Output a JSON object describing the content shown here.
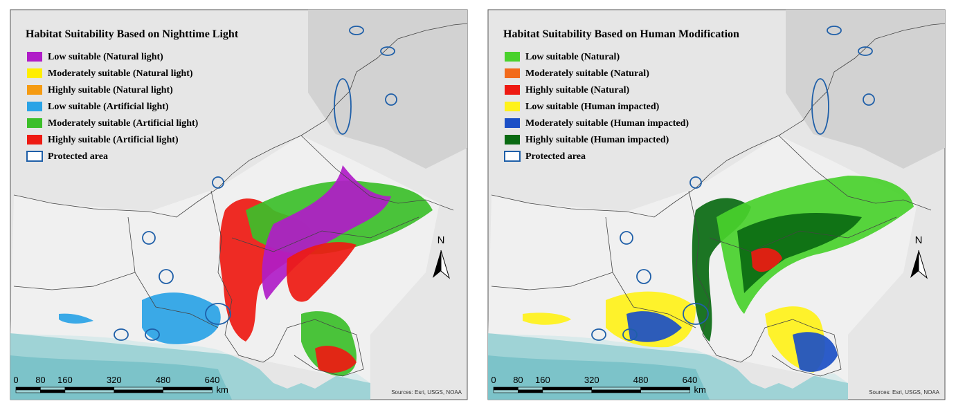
{
  "panels": [
    {
      "title": "Habitat Suitability Based on Nighttime Light",
      "legend": [
        {
          "label": "Low suitable (Natural light)",
          "color": "#b01cc8"
        },
        {
          "label": "Moderately suitable (Natural light)",
          "color": "#ffee00"
        },
        {
          "label": "Highly suitable (Natural light)",
          "color": "#f59b12"
        },
        {
          "label": "Low suitable (Artificial light)",
          "color": "#2aa3e6"
        },
        {
          "label": "Moderately suitable (Artificial light)",
          "color": "#3cbf2a"
        },
        {
          "label": "Highly suitable (Artificial light)",
          "color": "#ee1a12"
        },
        {
          "label": "Protected area",
          "color": "#1f5fa8",
          "outline": true
        }
      ],
      "scale_ticks": [
        0,
        80,
        160,
        320,
        480,
        640
      ],
      "scale_unit": "km",
      "north": "N",
      "sources": "Sources: Esri, USGS, NOAA"
    },
    {
      "title": "Habitat Suitability Based on Human Modification",
      "legend": [
        {
          "label": "Low suitable (Natural)",
          "color": "#49d12c"
        },
        {
          "label": "Moderately suitable (Natural)",
          "color": "#f26a1b"
        },
        {
          "label": "Highly suitable (Natural)",
          "color": "#ee1a12"
        },
        {
          "label": "Low suitable (Human impacted)",
          "color": "#fff21a"
        },
        {
          "label": "Moderately suitable (Human impacted)",
          "color": "#1b4fc6"
        },
        {
          "label": "Highly suitable (Human impacted)",
          "color": "#0a6a12"
        },
        {
          "label": "Protected area",
          "color": "#1f5fa8",
          "outline": true
        }
      ],
      "scale_ticks": [
        0,
        80,
        160,
        320,
        480,
        640
      ],
      "scale_unit": "km",
      "north": "N",
      "sources": "Sources: Esri, USGS, NOAA"
    }
  ]
}
